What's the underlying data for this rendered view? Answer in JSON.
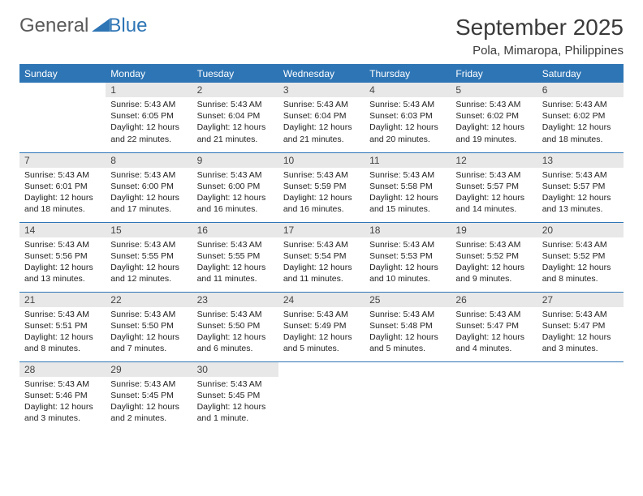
{
  "logo": {
    "text1": "General",
    "text2": "Blue"
  },
  "header": {
    "month_title": "September 2025",
    "location": "Pola, Mimaropa, Philippines"
  },
  "colors": {
    "header_bg": "#2e75b5",
    "header_text": "#ffffff",
    "daynum_bg": "#e8e8e8",
    "row_divider": "#2e75b5"
  },
  "weekdays": [
    "Sunday",
    "Monday",
    "Tuesday",
    "Wednesday",
    "Thursday",
    "Friday",
    "Saturday"
  ],
  "weeks": [
    [
      null,
      {
        "n": "1",
        "sr": "Sunrise: 5:43 AM",
        "ss": "Sunset: 6:05 PM",
        "dl": "Daylight: 12 hours and 22 minutes."
      },
      {
        "n": "2",
        "sr": "Sunrise: 5:43 AM",
        "ss": "Sunset: 6:04 PM",
        "dl": "Daylight: 12 hours and 21 minutes."
      },
      {
        "n": "3",
        "sr": "Sunrise: 5:43 AM",
        "ss": "Sunset: 6:04 PM",
        "dl": "Daylight: 12 hours and 21 minutes."
      },
      {
        "n": "4",
        "sr": "Sunrise: 5:43 AM",
        "ss": "Sunset: 6:03 PM",
        "dl": "Daylight: 12 hours and 20 minutes."
      },
      {
        "n": "5",
        "sr": "Sunrise: 5:43 AM",
        "ss": "Sunset: 6:02 PM",
        "dl": "Daylight: 12 hours and 19 minutes."
      },
      {
        "n": "6",
        "sr": "Sunrise: 5:43 AM",
        "ss": "Sunset: 6:02 PM",
        "dl": "Daylight: 12 hours and 18 minutes."
      }
    ],
    [
      {
        "n": "7",
        "sr": "Sunrise: 5:43 AM",
        "ss": "Sunset: 6:01 PM",
        "dl": "Daylight: 12 hours and 18 minutes."
      },
      {
        "n": "8",
        "sr": "Sunrise: 5:43 AM",
        "ss": "Sunset: 6:00 PM",
        "dl": "Daylight: 12 hours and 17 minutes."
      },
      {
        "n": "9",
        "sr": "Sunrise: 5:43 AM",
        "ss": "Sunset: 6:00 PM",
        "dl": "Daylight: 12 hours and 16 minutes."
      },
      {
        "n": "10",
        "sr": "Sunrise: 5:43 AM",
        "ss": "Sunset: 5:59 PM",
        "dl": "Daylight: 12 hours and 16 minutes."
      },
      {
        "n": "11",
        "sr": "Sunrise: 5:43 AM",
        "ss": "Sunset: 5:58 PM",
        "dl": "Daylight: 12 hours and 15 minutes."
      },
      {
        "n": "12",
        "sr": "Sunrise: 5:43 AM",
        "ss": "Sunset: 5:57 PM",
        "dl": "Daylight: 12 hours and 14 minutes."
      },
      {
        "n": "13",
        "sr": "Sunrise: 5:43 AM",
        "ss": "Sunset: 5:57 PM",
        "dl": "Daylight: 12 hours and 13 minutes."
      }
    ],
    [
      {
        "n": "14",
        "sr": "Sunrise: 5:43 AM",
        "ss": "Sunset: 5:56 PM",
        "dl": "Daylight: 12 hours and 13 minutes."
      },
      {
        "n": "15",
        "sr": "Sunrise: 5:43 AM",
        "ss": "Sunset: 5:55 PM",
        "dl": "Daylight: 12 hours and 12 minutes."
      },
      {
        "n": "16",
        "sr": "Sunrise: 5:43 AM",
        "ss": "Sunset: 5:55 PM",
        "dl": "Daylight: 12 hours and 11 minutes."
      },
      {
        "n": "17",
        "sr": "Sunrise: 5:43 AM",
        "ss": "Sunset: 5:54 PM",
        "dl": "Daylight: 12 hours and 11 minutes."
      },
      {
        "n": "18",
        "sr": "Sunrise: 5:43 AM",
        "ss": "Sunset: 5:53 PM",
        "dl": "Daylight: 12 hours and 10 minutes."
      },
      {
        "n": "19",
        "sr": "Sunrise: 5:43 AM",
        "ss": "Sunset: 5:52 PM",
        "dl": "Daylight: 12 hours and 9 minutes."
      },
      {
        "n": "20",
        "sr": "Sunrise: 5:43 AM",
        "ss": "Sunset: 5:52 PM",
        "dl": "Daylight: 12 hours and 8 minutes."
      }
    ],
    [
      {
        "n": "21",
        "sr": "Sunrise: 5:43 AM",
        "ss": "Sunset: 5:51 PM",
        "dl": "Daylight: 12 hours and 8 minutes."
      },
      {
        "n": "22",
        "sr": "Sunrise: 5:43 AM",
        "ss": "Sunset: 5:50 PM",
        "dl": "Daylight: 12 hours and 7 minutes."
      },
      {
        "n": "23",
        "sr": "Sunrise: 5:43 AM",
        "ss": "Sunset: 5:50 PM",
        "dl": "Daylight: 12 hours and 6 minutes."
      },
      {
        "n": "24",
        "sr": "Sunrise: 5:43 AM",
        "ss": "Sunset: 5:49 PM",
        "dl": "Daylight: 12 hours and 5 minutes."
      },
      {
        "n": "25",
        "sr": "Sunrise: 5:43 AM",
        "ss": "Sunset: 5:48 PM",
        "dl": "Daylight: 12 hours and 5 minutes."
      },
      {
        "n": "26",
        "sr": "Sunrise: 5:43 AM",
        "ss": "Sunset: 5:47 PM",
        "dl": "Daylight: 12 hours and 4 minutes."
      },
      {
        "n": "27",
        "sr": "Sunrise: 5:43 AM",
        "ss": "Sunset: 5:47 PM",
        "dl": "Daylight: 12 hours and 3 minutes."
      }
    ],
    [
      {
        "n": "28",
        "sr": "Sunrise: 5:43 AM",
        "ss": "Sunset: 5:46 PM",
        "dl": "Daylight: 12 hours and 3 minutes."
      },
      {
        "n": "29",
        "sr": "Sunrise: 5:43 AM",
        "ss": "Sunset: 5:45 PM",
        "dl": "Daylight: 12 hours and 2 minutes."
      },
      {
        "n": "30",
        "sr": "Sunrise: 5:43 AM",
        "ss": "Sunset: 5:45 PM",
        "dl": "Daylight: 12 hours and 1 minute."
      },
      null,
      null,
      null,
      null
    ]
  ]
}
